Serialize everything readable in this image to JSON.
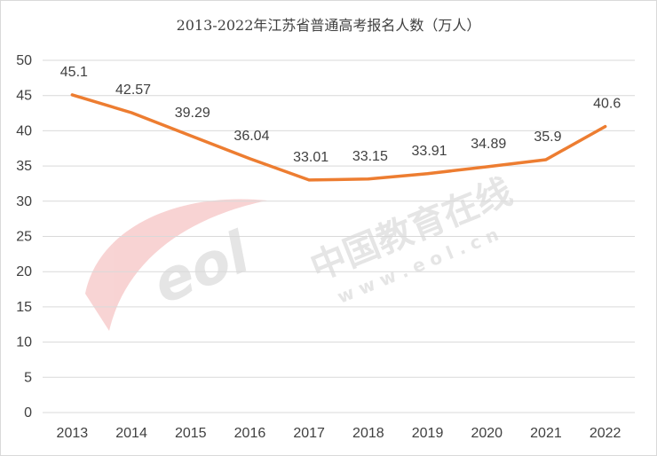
{
  "chart_data": {
    "type": "line",
    "title": "2013-2022年江苏省普通高考报名人数（万人）",
    "xlabel": "",
    "ylabel": "",
    "categories": [
      "2013",
      "2014",
      "2015",
      "2016",
      "2017",
      "2018",
      "2019",
      "2020",
      "2021",
      "2022"
    ],
    "values": [
      45.1,
      42.57,
      39.29,
      36.04,
      33.01,
      33.15,
      33.91,
      34.89,
      35.9,
      40.6
    ],
    "ylim": [
      0,
      50
    ],
    "yticks": [
      0,
      5,
      10,
      15,
      20,
      25,
      30,
      35,
      40,
      45,
      50
    ],
    "grid": true,
    "legend": "none",
    "line_color": "#ED7D31",
    "gridline_color": "#d9d9d9"
  },
  "watermark": {
    "logo": "eol",
    "cn_text": "中国教育在线",
    "url": "w w w . e o l . c n"
  }
}
